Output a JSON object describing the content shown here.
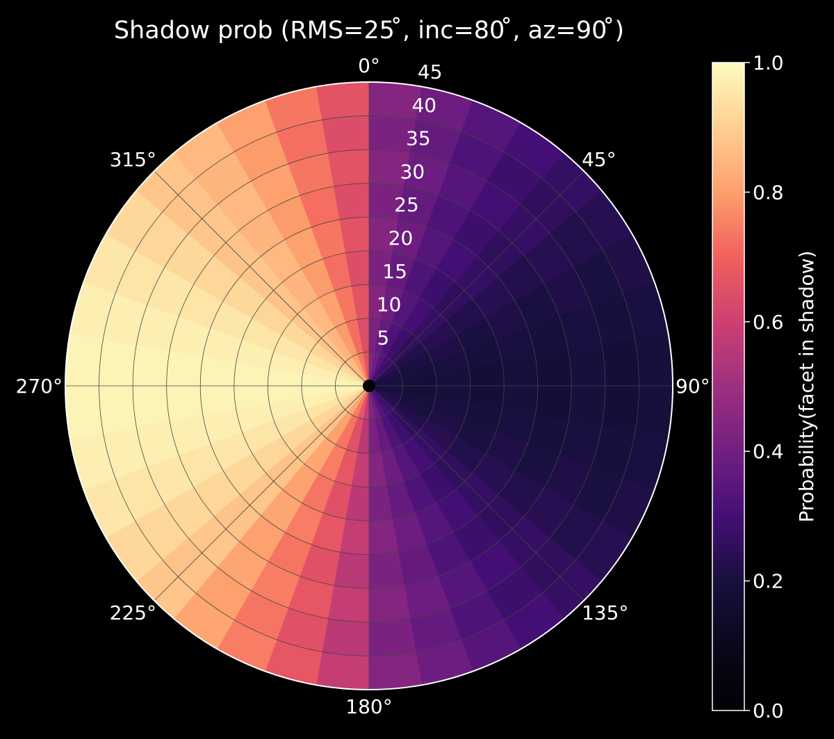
{
  "chart_data": {
    "type": "heatmap",
    "projection": "polar",
    "title": "Shadow prob (RMS=25 ̊, inc=80 ̊, az=90 ̊)",
    "theta_zero_location": "top",
    "theta_direction": "clockwise",
    "theta_tick_labels": [
      "0°",
      "45°",
      "90°",
      "135°",
      "180°",
      "225°",
      "270°",
      "315°"
    ],
    "theta_ticks_deg": [
      0,
      45,
      90,
      135,
      180,
      225,
      270,
      315
    ],
    "r_ticks": [
      5,
      10,
      15,
      20,
      25,
      30,
      35,
      40,
      45
    ],
    "r_tick_labels": [
      "5",
      "10",
      "15",
      "20",
      "25",
      "30",
      "35",
      "40",
      "45"
    ],
    "r_range": [
      0,
      45
    ],
    "azimuth_bin_width_deg": 10,
    "radial_bin_width": 5,
    "colormap": "magma_r",
    "colorbar": {
      "label": "Probability(facet in shadow)",
      "range": [
        0.0,
        1.0
      ],
      "ticks": [
        0.0,
        0.2,
        0.4,
        0.6,
        0.8,
        1.0
      ],
      "tick_labels": [
        "0.0",
        "0.2",
        "0.4",
        "0.6",
        "0.8",
        "1.0"
      ]
    },
    "azimuth_bin_centers_deg": [
      5,
      15,
      25,
      35,
      45,
      55,
      65,
      75,
      85,
      95,
      105,
      115,
      125,
      135,
      145,
      155,
      165,
      175,
      185,
      195,
      205,
      215,
      225,
      235,
      245,
      255,
      265,
      275,
      285,
      295,
      305,
      315,
      325,
      335,
      345,
      355
    ],
    "shadow_probability_by_azimuth_bin": [
      0.43,
      0.38,
      0.33,
      0.29,
      0.26,
      0.23,
      0.21,
      0.2,
      0.19,
      0.19,
      0.2,
      0.21,
      0.23,
      0.26,
      0.29,
      0.33,
      0.38,
      0.43,
      0.57,
      0.66,
      0.74,
      0.81,
      0.88,
      0.92,
      0.95,
      0.97,
      0.98,
      0.98,
      0.97,
      0.95,
      0.92,
      0.88,
      0.85,
      0.8,
      0.73,
      0.65
    ],
    "grid": true,
    "center_marker": true,
    "colors": {
      "background": "#000000",
      "grid": "#444444",
      "axis": "#ffffff",
      "text": "#ffffff"
    }
  }
}
